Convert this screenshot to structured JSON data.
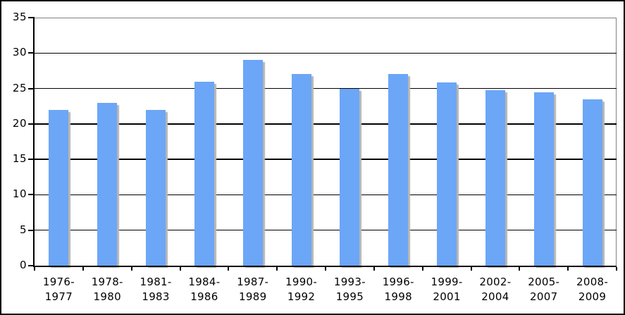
{
  "chart_data": {
    "type": "bar",
    "title": "",
    "xlabel": "",
    "ylabel": "",
    "categories": [
      "1976-1977",
      "1978-1980",
      "1981-1983",
      "1984-1986",
      "1987-1989",
      "1990-1992",
      "1993-1995",
      "1996-1998",
      "1999-2001",
      "2002-2004",
      "2005-2007",
      "2008-2009"
    ],
    "values": [
      22,
      23,
      22,
      26,
      29,
      27,
      25,
      27,
      25.9,
      24.8,
      24.5,
      23.5
    ],
    "ylim": [
      0,
      35
    ],
    "yticks": [
      0,
      5,
      10,
      15,
      20,
      25,
      30,
      35
    ],
    "grid": true,
    "legend_position": "none",
    "x_label_style": "two-line, hyphen kept on first line",
    "colors": {
      "bar_fill": "#6CA6F7",
      "bar_shadow": "#B5B5B5",
      "gridline": "#000000",
      "axis": "#000000",
      "plot_border": "#808080",
      "figure_border": "#000000",
      "background": "#FFFFFF",
      "tick_label": "#000000"
    }
  }
}
